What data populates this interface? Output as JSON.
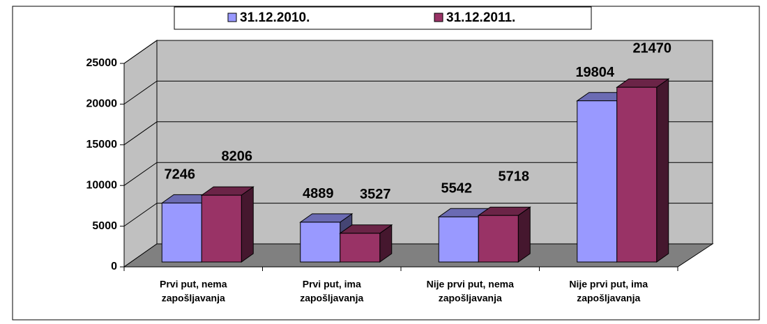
{
  "chart_data": {
    "type": "bar3d",
    "categories": [
      [
        "Prvi put, nema",
        "zapošljavanja"
      ],
      [
        "Prvi put, ima",
        "zapošljavanja"
      ],
      [
        "Nije prvi put, nema",
        "zapošljavanja"
      ],
      [
        "Nije prvi put, ima",
        "zapošljavanja"
      ]
    ],
    "series": [
      {
        "name": "31.12.2010.",
        "color": "#9999ff",
        "values": [
          7246,
          4889,
          5542,
          19804
        ]
      },
      {
        "name": "31.12.2011.",
        "color": "#993366",
        "values": [
          8206,
          3527,
          5718,
          21470
        ]
      }
    ],
    "ylim": [
      0,
      25000
    ],
    "yticks": [
      0,
      5000,
      10000,
      15000,
      20000,
      25000
    ],
    "grid": true,
    "legend": "top"
  }
}
